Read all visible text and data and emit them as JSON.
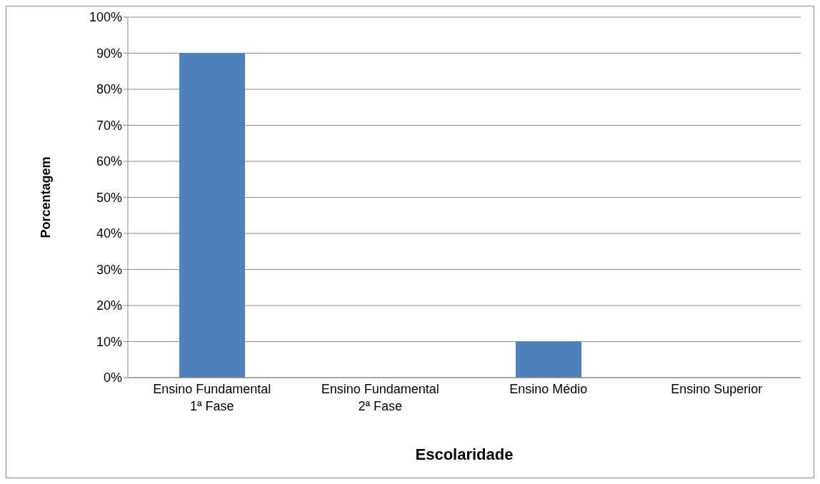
{
  "chart_data": {
    "type": "bar",
    "xlabel": "Escolaridade",
    "ylabel": "Porcentagem",
    "categories": [
      "Ensino Fundamental 1ª Fase",
      "Ensino Fundamental 2ª Fase",
      "Ensino Médio",
      "Ensino Superior"
    ],
    "values": [
      90,
      0,
      10,
      0
    ],
    "color": "#4f81bd",
    "ylim": [
      0,
      100
    ],
    "yticks": [
      {
        "value": 0,
        "label": "0%"
      },
      {
        "value": 10,
        "label": "10%"
      },
      {
        "value": 20,
        "label": "20%"
      },
      {
        "value": 30,
        "label": "30%"
      },
      {
        "value": 40,
        "label": "40%"
      },
      {
        "value": 50,
        "label": "50%"
      },
      {
        "value": 60,
        "label": "60%"
      },
      {
        "value": 70,
        "label": "70%"
      },
      {
        "value": 80,
        "label": "80%"
      },
      {
        "value": 90,
        "label": "90%"
      },
      {
        "value": 100,
        "label": "100%"
      }
    ],
    "grid": "y"
  }
}
